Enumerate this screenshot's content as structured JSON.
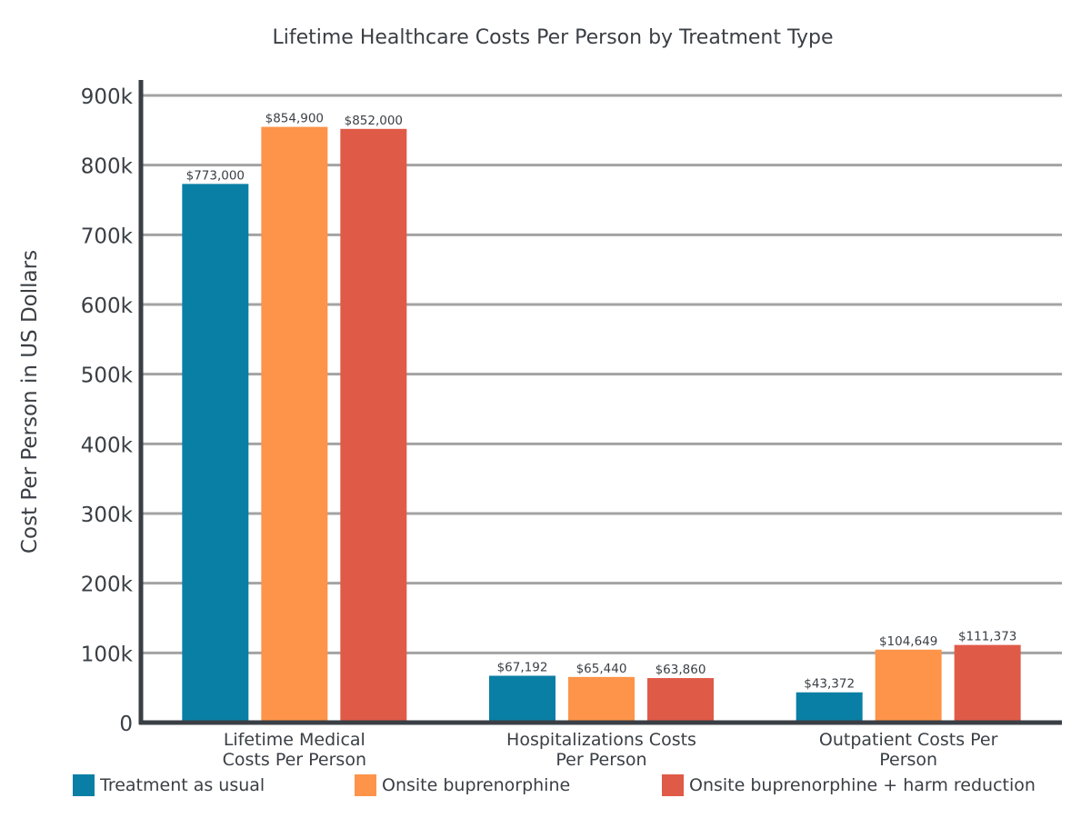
{
  "chart_data": {
    "type": "bar",
    "title": "Lifetime Healthcare Costs Per Person by Treatment Type",
    "ylabel": "Cost Per Person in US Dollars",
    "xlabel": "",
    "ylim": [
      0,
      900000
    ],
    "yticks": [
      {
        "value": 0,
        "label": "0"
      },
      {
        "value": 100000,
        "label": "100k"
      },
      {
        "value": 200000,
        "label": "200k"
      },
      {
        "value": 300000,
        "label": "300k"
      },
      {
        "value": 400000,
        "label": "400k"
      },
      {
        "value": 500000,
        "label": "500k"
      },
      {
        "value": 600000,
        "label": "600k"
      },
      {
        "value": 700000,
        "label": "700k"
      },
      {
        "value": 800000,
        "label": "800k"
      },
      {
        "value": 900000,
        "label": "900k"
      }
    ],
    "grid": true,
    "legend_position": "bottom",
    "categories": [
      [
        "Lifetime Medical",
        "Costs Per Person"
      ],
      [
        "Hospitalizations Costs",
        "Per Person"
      ],
      [
        "Outpatient Costs Per",
        "Person"
      ]
    ],
    "series": [
      {
        "name": "Treatment as usual",
        "color": "#0a7fa5",
        "values": [
          773000,
          67192,
          43372
        ],
        "labels": [
          "$773,000",
          "$67,192",
          "$43,372"
        ]
      },
      {
        "name": "Onsite buprenorphine",
        "color": "#fd9449",
        "values": [
          854900,
          65440,
          104649
        ],
        "labels": [
          "$854,900",
          "$65,440",
          "$104,649"
        ]
      },
      {
        "name": "Onsite buprenorphine + harm reduction",
        "color": "#e05a48",
        "values": [
          852000,
          63860,
          111373
        ],
        "labels": [
          "$852,000",
          "$63,860",
          "$111,373"
        ]
      }
    ],
    "colors": {
      "grid": "#a3a3a3",
      "axis": "#3a3f45",
      "text": "#3a3f45"
    }
  }
}
